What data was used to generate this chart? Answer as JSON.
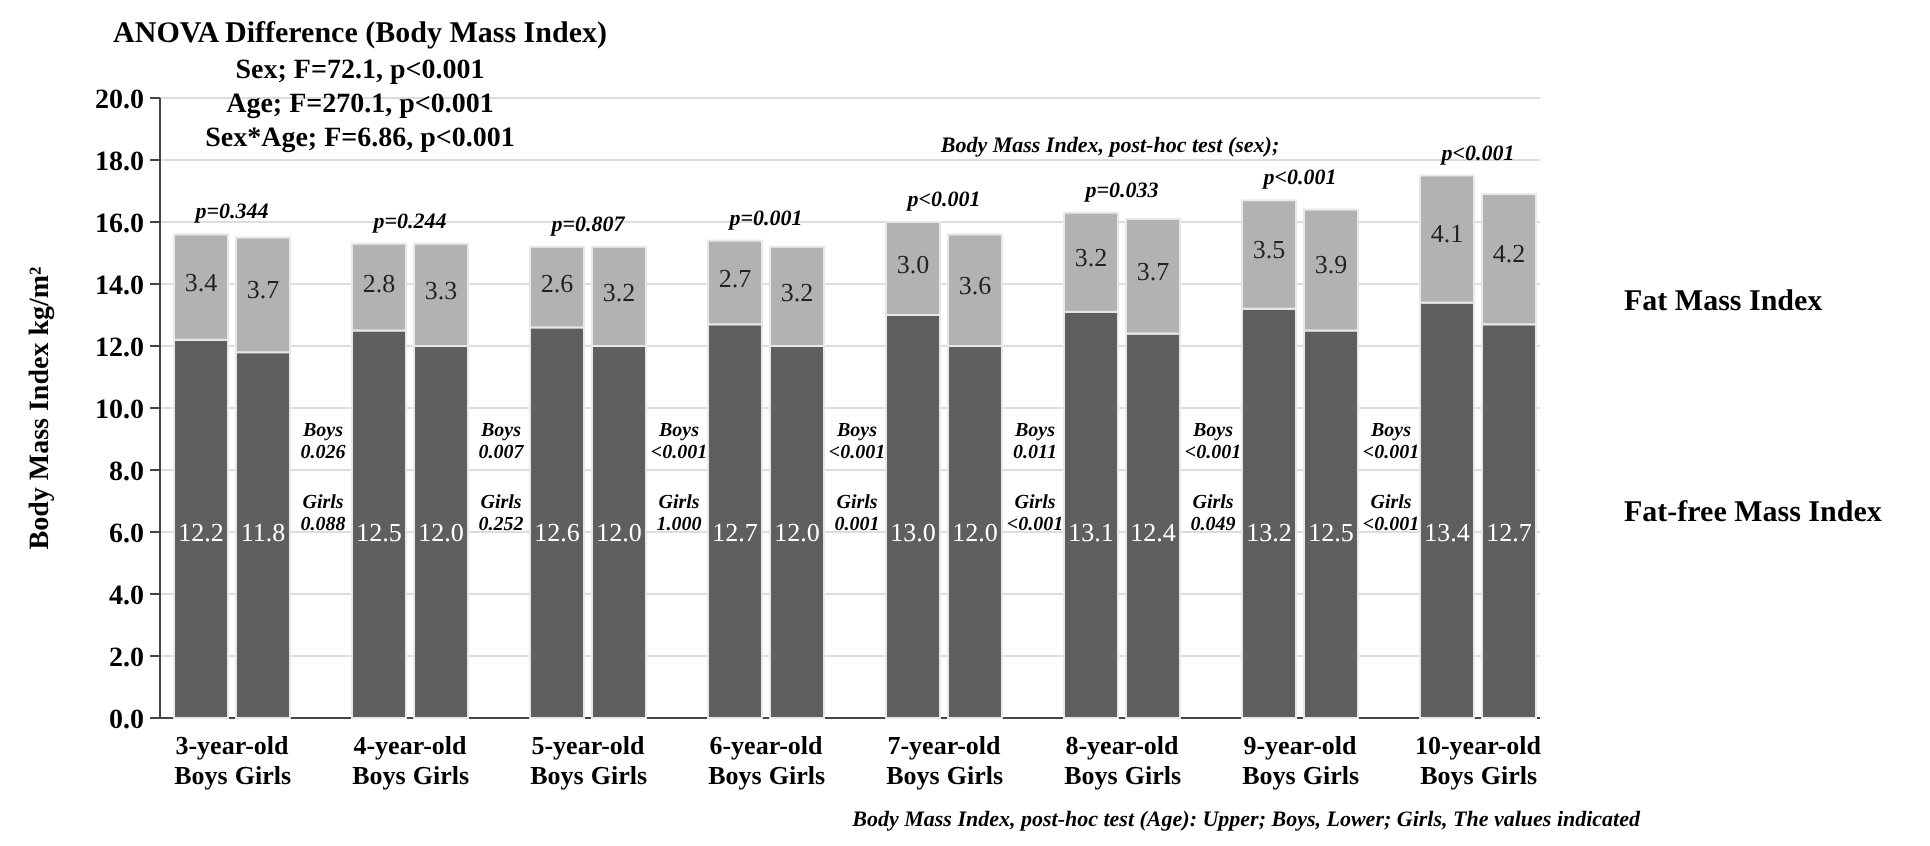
{
  "chart_data": {
    "type": "bar",
    "stacked": true,
    "title": "ANOVA Difference (Body Mass Index)",
    "ylabel": "Body Mass Index kg/m²",
    "categories": [
      "Boys",
      "Girls",
      "Boys",
      "Girls",
      "Boys",
      "Girls",
      "Boys",
      "Girls",
      "Boys",
      "Girls",
      "Boys",
      "Girls",
      "Boys",
      "Girls",
      "Boys",
      "Girls"
    ],
    "series": [
      {
        "name": "Fat-free Mass Index",
        "color": "#5f5f5f",
        "values": [
          12.2,
          11.8,
          12.5,
          12.0,
          12.6,
          12.0,
          12.7,
          12.0,
          13.0,
          12.0,
          13.1,
          12.4,
          13.2,
          12.5,
          13.4,
          12.7
        ],
        "value_labels": [
          "12.2",
          "11.8",
          "12.5",
          "12.0",
          "12.6",
          "12.0",
          "12.7",
          "12.0",
          "13.0",
          "12.0",
          "13.1",
          "12.4",
          "13.2",
          "12.5",
          "13.4",
          "12.7"
        ]
      },
      {
        "name": "Fat Mass Index",
        "color": "#b2b2b2",
        "values": [
          3.4,
          3.7,
          2.8,
          3.3,
          2.6,
          3.2,
          2.7,
          3.2,
          3.0,
          3.6,
          3.2,
          3.7,
          3.5,
          3.9,
          4.1,
          4.2
        ],
        "value_labels": [
          "3.4",
          "3.7",
          "2.8",
          "3.3",
          "2.6",
          "3.2",
          "2.7",
          "3.2",
          "3.0",
          "3.6",
          "3.2",
          "3.7",
          "3.5",
          "3.9",
          "4.1",
          "4.2"
        ]
      }
    ],
    "ylim": [
      0,
      20
    ],
    "yticks": [
      {
        "value": 0,
        "label": "0.0"
      },
      {
        "value": 2,
        "label": "2.0"
      },
      {
        "value": 4,
        "label": "4.0"
      },
      {
        "value": 6,
        "label": "6.0"
      },
      {
        "value": 8,
        "label": "8.0"
      },
      {
        "value": 10,
        "label": "10.0"
      },
      {
        "value": 12,
        "label": "12.0"
      },
      {
        "value": 14,
        "label": "14.0"
      },
      {
        "value": 16,
        "label": "16.0"
      },
      {
        "value": 18,
        "label": "18.0"
      },
      {
        "value": 20,
        "label": "20.0"
      }
    ],
    "grid": "y",
    "legend": false,
    "annotations": [
      "Sex; F=72.1, p<0.001",
      "Age; F=270.1, p<0.001",
      "Sex*Age; F=6.86, p<0.001",
      "Body Mass Index, post-hoc test (sex);",
      "p=0.344",
      "p=0.244",
      "p=0.807",
      "p=0.001",
      "p<0.001",
      "p=0.033",
      "p<0.001",
      "p<0.001",
      "Boys\n0.026\nGirls\n0.088",
      "Boys\n0.007\nGirls\n0.252",
      "Boys\n<0.001\nGirls\n1.000",
      "Boys\n<0.001\nGirls\n0.001",
      "Boys\n0.011\nGirls\n<0.001",
      "Boys\n<0.001\nGirls\n0.049",
      "Boys\n<0.001\nGirls\n<0.001",
      "Body Mass Index,  post-hoc test (Age): Upper; Boys, Lower; Girls, The values indicated",
      "3-year-old",
      "4-year-old",
      "5-year-old",
      "6-year-old",
      "7-year-old",
      "8-year-old",
      "9-year-old",
      "10-year-old"
    ]
  }
}
